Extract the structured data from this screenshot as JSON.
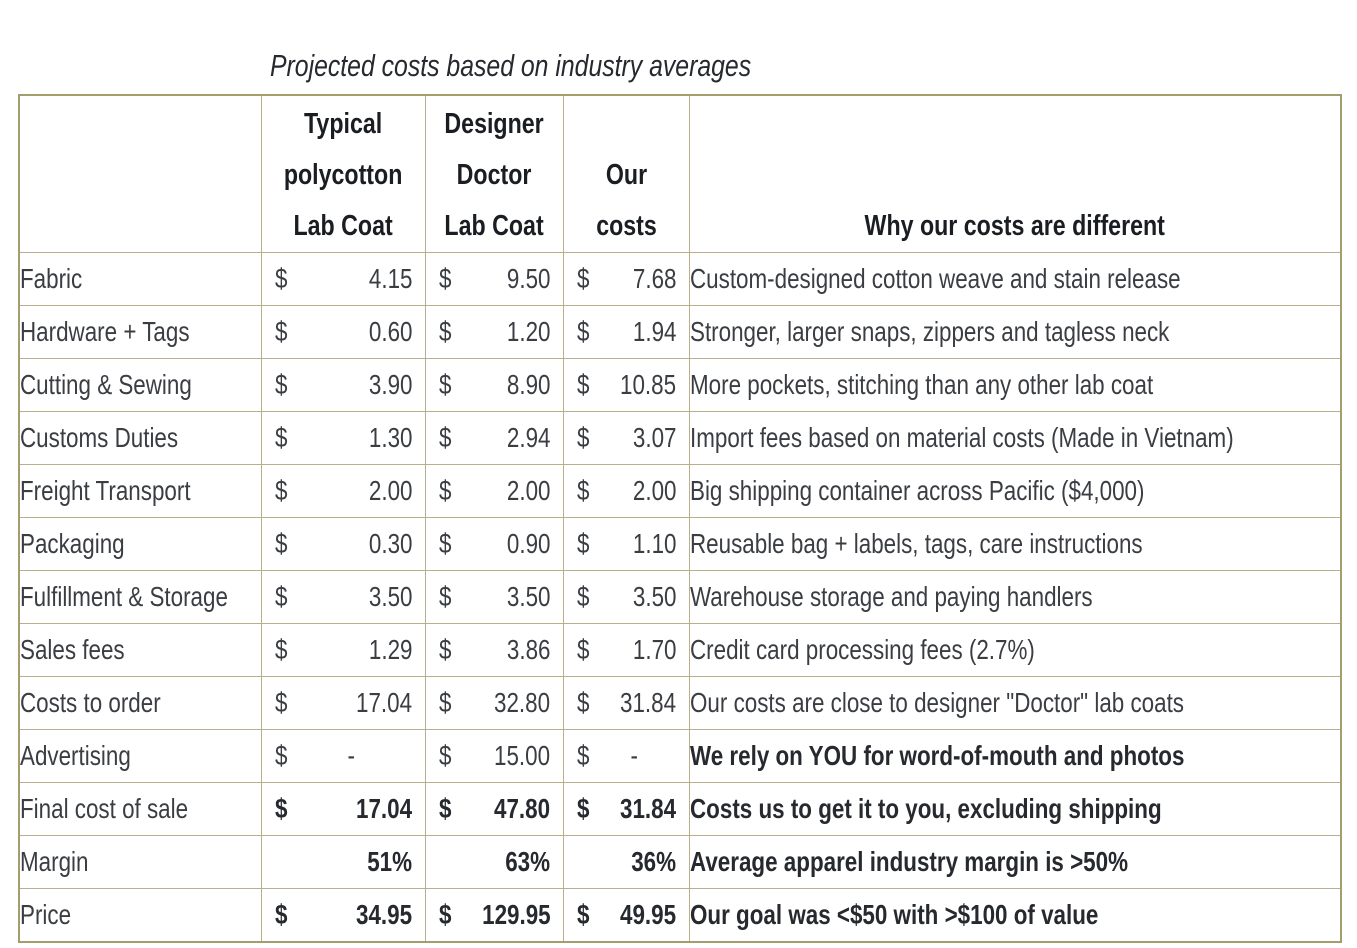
{
  "title": "Projected costs based on industry averages",
  "colors": {
    "border_outer": "#a59d6e",
    "border_inner": "#b7b08a",
    "text_normal": "#3a3d42",
    "text_bold": "#26292e",
    "background": "#ffffff"
  },
  "table": {
    "currency_symbol": "$",
    "columns": {
      "row_header": "",
      "typical": "Typical\npolycotton\nLab Coat",
      "designer": "Designer\nDoctor\nLab Coat",
      "ours": "Our costs",
      "why": "Why our costs are different"
    },
    "rows": [
      {
        "label": "Fabric",
        "currency": true,
        "typical": "4.15",
        "designer": "9.50",
        "ours": "7.68",
        "note": "Custom-designed cotton weave and stain release",
        "bold_values": false,
        "bold_note": false
      },
      {
        "label": "Hardware + Tags",
        "currency": true,
        "typical": "0.60",
        "designer": "1.20",
        "ours": "1.94",
        "note": "Stronger, larger snaps, zippers and tagless neck",
        "bold_values": false,
        "bold_note": false
      },
      {
        "label": "Cutting & Sewing",
        "currency": true,
        "typical": "3.90",
        "designer": "8.90",
        "ours": "10.85",
        "note": "More pockets, stitching than any other lab coat",
        "bold_values": false,
        "bold_note": false
      },
      {
        "label": "Customs Duties",
        "currency": true,
        "typical": "1.30",
        "designer": "2.94",
        "ours": "3.07",
        "note": "Import fees based on material costs (Made in Vietnam)",
        "bold_values": false,
        "bold_note": false
      },
      {
        "label": "Freight Transport",
        "currency": true,
        "typical": "2.00",
        "designer": "2.00",
        "ours": "2.00",
        "note": "Big shipping container across Pacific ($4,000)",
        "bold_values": false,
        "bold_note": false
      },
      {
        "label": "Packaging",
        "currency": true,
        "typical": "0.30",
        "designer": "0.90",
        "ours": "1.10",
        "note": "Reusable bag + labels, tags, care instructions",
        "bold_values": false,
        "bold_note": false
      },
      {
        "label": "Fulfillment & Storage",
        "currency": true,
        "typical": "3.50",
        "designer": "3.50",
        "ours": "3.50",
        "note": "Warehouse storage and paying handlers",
        "bold_values": false,
        "bold_note": false
      },
      {
        "label": "Sales fees",
        "currency": true,
        "typical": "1.29",
        "designer": "3.86",
        "ours": "1.70",
        "note": "Credit card processing fees (2.7%)",
        "bold_values": false,
        "bold_note": false
      },
      {
        "label": "Costs to order",
        "currency": true,
        "typical": "17.04",
        "designer": "32.80",
        "ours": "31.84",
        "note": "Our costs are close to designer \"Doctor\" lab coats",
        "bold_values": false,
        "bold_note": false
      },
      {
        "label": "Advertising",
        "currency": true,
        "typical": "-",
        "designer": "15.00",
        "ours": "-",
        "note": "We rely on YOU for word-of-mouth and photos",
        "bold_values": false,
        "bold_note": true
      },
      {
        "label": "Final cost of sale",
        "currency": true,
        "typical": "17.04",
        "designer": "47.80",
        "ours": "31.84",
        "note": "Costs us to get it to you, excluding shipping",
        "bold_values": true,
        "bold_note": true
      },
      {
        "label": "Margin",
        "currency": false,
        "typical": "51%",
        "designer": "63%",
        "ours": "36%",
        "note": "Average apparel industry margin is >50%",
        "bold_values": true,
        "bold_note": true
      },
      {
        "label": "Price",
        "currency": true,
        "typical": "34.95",
        "designer": "129.95",
        "ours": "49.95",
        "note": "Our goal was <$50 with >$100 of value",
        "bold_values": true,
        "bold_note": true
      }
    ]
  }
}
